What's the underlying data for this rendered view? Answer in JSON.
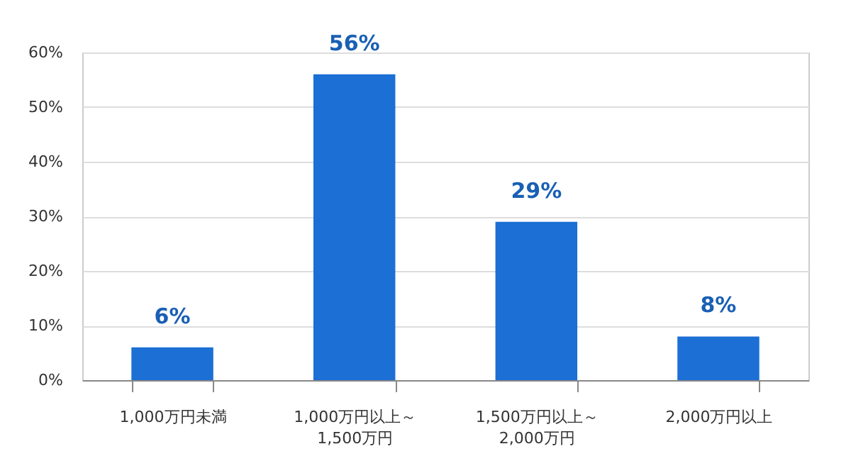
{
  "chart_data": {
    "type": "bar",
    "categories": [
      "1,000万円未満",
      "1,000万円以上～1,500万円",
      "1,500万円以上～2,000万円",
      "2,000万円以上"
    ],
    "values": [
      6,
      56,
      29,
      8
    ],
    "color": "#1c6fd4",
    "ylim": [
      0,
      60
    ],
    "yticks": [
      {
        "value": 0,
        "label": "0%"
      },
      {
        "value": 10,
        "label": "10%"
      },
      {
        "value": 20,
        "label": "20%"
      },
      {
        "value": 30,
        "label": "30%"
      },
      {
        "value": 40,
        "label": "40%"
      },
      {
        "value": 50,
        "label": "50%"
      },
      {
        "value": 60,
        "label": "60%"
      }
    ],
    "grid": "y",
    "value_labels": [
      "6%",
      "56%",
      "29%",
      "8%"
    ]
  }
}
